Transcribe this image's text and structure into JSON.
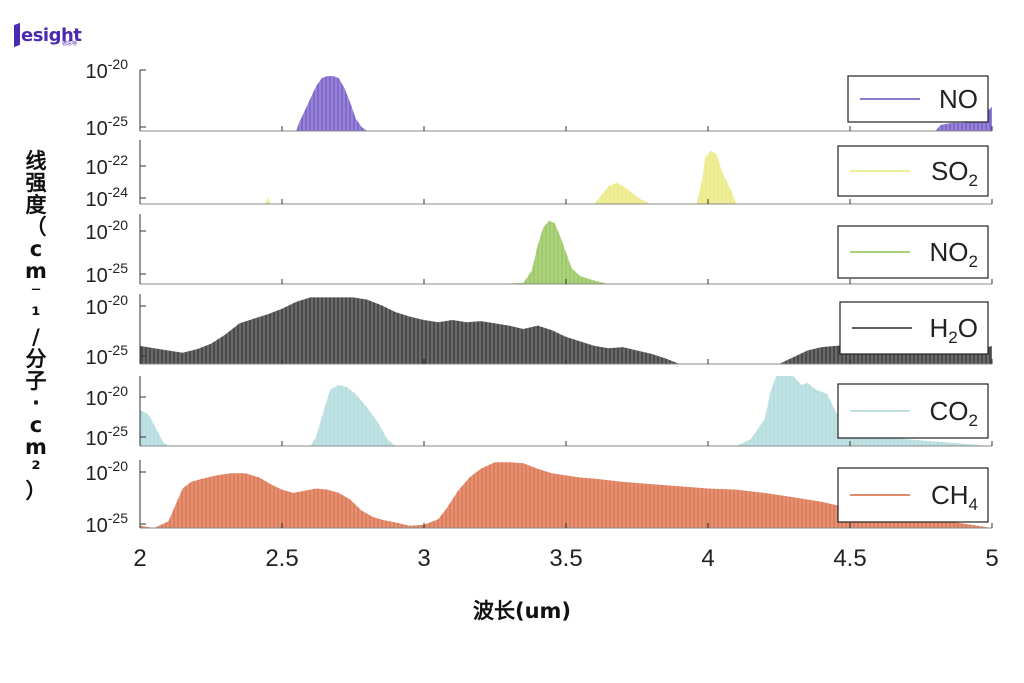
{
  "logo": {
    "text": "esight",
    "sub": "德思特"
  },
  "chart_data": {
    "type": "area",
    "xlabel": "波长(um)",
    "ylabel": "线强度（cm⁻¹/分子·cm²）",
    "x_ticks": [
      "2",
      "2.5",
      "3",
      "3.5",
      "4",
      "4.5",
      "5"
    ],
    "xlim": [
      2,
      5
    ],
    "y_scale": "log",
    "series": [
      {
        "name": "NO",
        "legend": [
          "NO",
          ""
        ],
        "color": "#6a4fc4",
        "y_ticks": [
          "10^-20",
          "10^-25"
        ],
        "ylim_log": [
          -25.6,
          -19.6
        ],
        "points": [
          [
            2.55,
            -25.6
          ],
          [
            2.56,
            -24.8
          ],
          [
            2.58,
            -23.6
          ],
          [
            2.6,
            -22.4
          ],
          [
            2.62,
            -21.2
          ],
          [
            2.64,
            -20.4
          ],
          [
            2.66,
            -20.2
          ],
          [
            2.68,
            -20.2
          ],
          [
            2.7,
            -20.4
          ],
          [
            2.72,
            -21.4
          ],
          [
            2.74,
            -22.8
          ],
          [
            2.76,
            -24.4
          ],
          [
            2.78,
            -25.2
          ],
          [
            2.8,
            -25.6
          ],
          [
            4.8,
            -25.6
          ],
          [
            4.82,
            -25.0
          ],
          [
            4.86,
            -24.8
          ],
          [
            4.9,
            -24.8
          ],
          [
            4.94,
            -24.6
          ],
          [
            4.98,
            -23.8
          ],
          [
            5.0,
            -23.2
          ]
        ]
      },
      {
        "name": "SO₂",
        "legend": [
          "SO",
          "2"
        ],
        "color": "#e8e874",
        "y_ticks": [
          "10^-22",
          "10^-24"
        ],
        "ylim_log": [
          -24.6,
          -21.0
        ],
        "points": [
          [
            2.44,
            -24.6
          ],
          [
            2.45,
            -24.2
          ],
          [
            2.46,
            -24.6
          ],
          [
            3.6,
            -24.6
          ],
          [
            3.62,
            -24.2
          ],
          [
            3.65,
            -23.6
          ],
          [
            3.68,
            -23.4
          ],
          [
            3.72,
            -23.8
          ],
          [
            3.76,
            -24.3
          ],
          [
            3.8,
            -24.6
          ],
          [
            3.96,
            -24.6
          ],
          [
            3.98,
            -23.2
          ],
          [
            3.99,
            -22.0
          ],
          [
            4.01,
            -21.6
          ],
          [
            4.03,
            -21.8
          ],
          [
            4.05,
            -22.8
          ],
          [
            4.08,
            -23.8
          ],
          [
            4.1,
            -24.6
          ]
        ]
      },
      {
        "name": "NO₂",
        "legend": [
          "NO",
          "2"
        ],
        "color": "#8cc04c",
        "y_ticks": [
          "10^-20",
          "10^-25"
        ],
        "ylim_log": [
          -25.8,
          -19.6
        ],
        "points": [
          [
            3.25,
            -25.8
          ],
          [
            3.35,
            -25.7
          ],
          [
            3.38,
            -24.6
          ],
          [
            3.4,
            -22.4
          ],
          [
            3.42,
            -20.8
          ],
          [
            3.44,
            -20.2
          ],
          [
            3.46,
            -20.4
          ],
          [
            3.48,
            -21.6
          ],
          [
            3.5,
            -23.0
          ],
          [
            3.52,
            -24.4
          ],
          [
            3.55,
            -25.1
          ],
          [
            3.6,
            -25.5
          ],
          [
            3.65,
            -25.8
          ],
          [
            5.0,
            -25.8
          ]
        ]
      },
      {
        "name": "H₂O",
        "legend": [
          "H",
          "2",
          "O"
        ],
        "color": "#2a2a2a",
        "y_ticks": [
          "10^-20",
          "10^-25"
        ],
        "ylim_log": [
          -25.8,
          -19.6
        ],
        "points": [
          [
            2.0,
            -24.2
          ],
          [
            2.05,
            -24.4
          ],
          [
            2.1,
            -24.6
          ],
          [
            2.15,
            -24.8
          ],
          [
            2.2,
            -24.5
          ],
          [
            2.25,
            -24.0
          ],
          [
            2.3,
            -23.2
          ],
          [
            2.35,
            -22.2
          ],
          [
            2.4,
            -21.8
          ],
          [
            2.45,
            -21.4
          ],
          [
            2.5,
            -20.9
          ],
          [
            2.55,
            -20.3
          ],
          [
            2.6,
            -19.9
          ],
          [
            2.65,
            -19.9
          ],
          [
            2.7,
            -19.9
          ],
          [
            2.75,
            -19.9
          ],
          [
            2.8,
            -20.1
          ],
          [
            2.85,
            -20.6
          ],
          [
            2.9,
            -21.2
          ],
          [
            2.95,
            -21.6
          ],
          [
            3.0,
            -21.9
          ],
          [
            3.05,
            -22.1
          ],
          [
            3.1,
            -21.9
          ],
          [
            3.15,
            -22.1
          ],
          [
            3.2,
            -22.0
          ],
          [
            3.25,
            -22.2
          ],
          [
            3.3,
            -22.4
          ],
          [
            3.35,
            -22.7
          ],
          [
            3.4,
            -22.4
          ],
          [
            3.45,
            -22.8
          ],
          [
            3.5,
            -23.4
          ],
          [
            3.55,
            -23.8
          ],
          [
            3.6,
            -24.2
          ],
          [
            3.65,
            -24.4
          ],
          [
            3.7,
            -24.3
          ],
          [
            3.75,
            -24.6
          ],
          [
            3.8,
            -24.9
          ],
          [
            3.85,
            -25.3
          ],
          [
            3.9,
            -25.8
          ],
          [
            4.25,
            -25.8
          ],
          [
            4.3,
            -25.2
          ],
          [
            4.35,
            -24.6
          ],
          [
            4.4,
            -24.3
          ],
          [
            4.45,
            -24.2
          ],
          [
            4.5,
            -24.1
          ],
          [
            4.55,
            -23.9
          ],
          [
            4.6,
            -23.8
          ],
          [
            4.7,
            -23.7
          ],
          [
            4.8,
            -23.9
          ],
          [
            4.9,
            -24.2
          ],
          [
            4.95,
            -24.6
          ],
          [
            5.0,
            -24.2
          ]
        ]
      },
      {
        "name": "CO₂",
        "legend": [
          "CO",
          "2"
        ],
        "color": "#a9d7d9",
        "y_ticks": [
          "10^-20",
          "10^-25"
        ],
        "ylim_log": [
          -25.8,
          -19.6
        ],
        "points": [
          [
            2.0,
            -22.6
          ],
          [
            2.03,
            -23.0
          ],
          [
            2.06,
            -24.4
          ],
          [
            2.08,
            -25.4
          ],
          [
            2.1,
            -25.8
          ],
          [
            2.6,
            -25.8
          ],
          [
            2.62,
            -25.0
          ],
          [
            2.65,
            -22.4
          ],
          [
            2.67,
            -20.8
          ],
          [
            2.7,
            -20.4
          ],
          [
            2.73,
            -20.6
          ],
          [
            2.76,
            -21.2
          ],
          [
            2.8,
            -22.4
          ],
          [
            2.84,
            -23.8
          ],
          [
            2.87,
            -25.2
          ],
          [
            2.9,
            -25.8
          ],
          [
            4.1,
            -25.8
          ],
          [
            4.15,
            -25.2
          ],
          [
            4.2,
            -23.4
          ],
          [
            4.22,
            -21.0
          ],
          [
            4.24,
            -19.6
          ],
          [
            4.3,
            -19.6
          ],
          [
            4.33,
            -20.4
          ],
          [
            4.35,
            -20.2
          ],
          [
            4.38,
            -20.8
          ],
          [
            4.42,
            -21.2
          ],
          [
            4.45,
            -22.8
          ],
          [
            4.5,
            -24.0
          ],
          [
            4.6,
            -24.8
          ],
          [
            4.7,
            -25.2
          ],
          [
            4.8,
            -25.4
          ],
          [
            4.9,
            -25.6
          ],
          [
            5.0,
            -25.8
          ]
        ]
      },
      {
        "name": "CH₄",
        "legend": [
          "CH",
          "4"
        ],
        "color": "#d9653c",
        "y_ticks": [
          "10^-20",
          "10^-25"
        ],
        "ylim_log": [
          -25.8,
          -19.6
        ],
        "points": [
          [
            2.0,
            -25.6
          ],
          [
            2.05,
            -25.8
          ],
          [
            2.1,
            -25.2
          ],
          [
            2.13,
            -23.4
          ],
          [
            2.15,
            -22.2
          ],
          [
            2.18,
            -21.6
          ],
          [
            2.22,
            -21.3
          ],
          [
            2.27,
            -21.0
          ],
          [
            2.32,
            -20.8
          ],
          [
            2.37,
            -20.8
          ],
          [
            2.42,
            -21.2
          ],
          [
            2.46,
            -21.8
          ],
          [
            2.5,
            -22.3
          ],
          [
            2.54,
            -22.6
          ],
          [
            2.58,
            -22.4
          ],
          [
            2.62,
            -22.2
          ],
          [
            2.66,
            -22.3
          ],
          [
            2.7,
            -22.6
          ],
          [
            2.74,
            -23.2
          ],
          [
            2.78,
            -24.2
          ],
          [
            2.82,
            -24.8
          ],
          [
            2.86,
            -25.1
          ],
          [
            2.9,
            -25.3
          ],
          [
            2.95,
            -25.6
          ],
          [
            3.0,
            -25.5
          ],
          [
            3.05,
            -25.0
          ],
          [
            3.08,
            -24.0
          ],
          [
            3.12,
            -22.4
          ],
          [
            3.16,
            -21.2
          ],
          [
            3.2,
            -20.4
          ],
          [
            3.25,
            -19.8
          ],
          [
            3.3,
            -19.8
          ],
          [
            3.35,
            -19.9
          ],
          [
            3.4,
            -20.4
          ],
          [
            3.45,
            -20.8
          ],
          [
            3.5,
            -21.0
          ],
          [
            3.55,
            -21.2
          ],
          [
            3.6,
            -21.3
          ],
          [
            3.7,
            -21.6
          ],
          [
            3.8,
            -21.8
          ],
          [
            3.9,
            -22.0
          ],
          [
            4.0,
            -22.2
          ],
          [
            4.1,
            -22.3
          ],
          [
            4.2,
            -22.6
          ],
          [
            4.3,
            -23.0
          ],
          [
            4.4,
            -23.4
          ],
          [
            4.5,
            -24.0
          ],
          [
            4.6,
            -24.4
          ],
          [
            4.7,
            -24.6
          ],
          [
            4.8,
            -25.0
          ],
          [
            4.9,
            -25.4
          ],
          [
            5.0,
            -25.8
          ]
        ]
      }
    ]
  }
}
